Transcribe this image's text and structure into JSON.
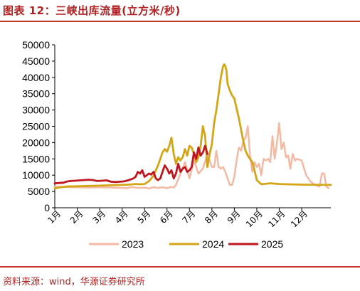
{
  "figure": {
    "title": "图表 12：三峡出库流量(立方米/秒)",
    "source": "资料来源：wind，华源证券研究所"
  },
  "chart_data": {
    "type": "line",
    "title": "图表 12：三峡出库流量(立方米/秒)",
    "xlabel": "",
    "ylabel": "",
    "ylim": [
      0,
      50000
    ],
    "yticks": [
      "0",
      "5000",
      "10000",
      "15000",
      "20000",
      "25000",
      "30000",
      "35000",
      "40000",
      "45000",
      "50000"
    ],
    "xticks": [
      "1月",
      "2月",
      "3月",
      "4月",
      "5月",
      "6月",
      "7月",
      "8月",
      "9月",
      "10月",
      "11月",
      "12月"
    ],
    "xlim": [
      0,
      12.3
    ],
    "grid": false,
    "legend_position": "bottom",
    "series": [
      {
        "name": "2023",
        "color": "#f4b9a3",
        "width": 2.5,
        "x": [
          0,
          0.5,
          1,
          1.5,
          2,
          2.5,
          3,
          3.2,
          3.4,
          3.6,
          3.8,
          4,
          4.2,
          4.4,
          4.5,
          4.6,
          4.8,
          5,
          5.2,
          5.3,
          5.4,
          5.6,
          5.8,
          6,
          6.2,
          6.4,
          6.6,
          6.8,
          7,
          7.1,
          7.2,
          7.3,
          7.4,
          7.5,
          7.6,
          7.7,
          7.8,
          7.9,
          8,
          8.1,
          8.2,
          8.3,
          8.4,
          8.5,
          8.6,
          8.7,
          8.8,
          8.9,
          9,
          9.1,
          9.2,
          9.3,
          9.4,
          9.5,
          9.6,
          9.7,
          9.8,
          9.9,
          10,
          10.1,
          10.2,
          10.3,
          10.4,
          10.5,
          10.6,
          10.7,
          10.8,
          11,
          11.2,
          11.4,
          11.6,
          11.8,
          11.9,
          12,
          12.1,
          12.2
        ],
        "y": [
          6500,
          6400,
          6300,
          6200,
          6300,
          6200,
          6100,
          6000,
          6300,
          6200,
          6100,
          6200,
          5900,
          6300,
          6200,
          6100,
          6300,
          6000,
          6400,
          6200,
          7000,
          10500,
          14000,
          9000,
          14500,
          10500,
          12000,
          16500,
          12500,
          12500,
          17500,
          12500,
          12000,
          12500,
          11000,
          9000,
          7000,
          7000,
          9500,
          14500,
          18500,
          17500,
          20500,
          21500,
          25000,
          16000,
          11000,
          14000,
          12500,
          13500,
          10000,
          15000,
          14500,
          15000,
          14000,
          22000,
          15000,
          20000,
          26000,
          18000,
          20000,
          15500,
          16000,
          12000,
          16500,
          14500,
          15000,
          14500,
          10000,
          8000,
          7000,
          6500,
          10500,
          10500,
          6500,
          6000
        ]
      },
      {
        "name": "2024",
        "color": "#d4a617",
        "width": 2.8,
        "x": [
          0,
          0.5,
          1,
          1.5,
          2,
          2.5,
          3,
          3.3,
          3.6,
          3.8,
          4,
          4.2,
          4.4,
          4.5,
          4.6,
          4.7,
          4.8,
          4.9,
          5,
          5.1,
          5.2,
          5.3,
          5.4,
          5.5,
          5.6,
          5.7,
          5.8,
          5.9,
          6,
          6.1,
          6.2,
          6.3,
          6.4,
          6.5,
          6.6,
          6.7,
          6.8,
          6.9,
          7,
          7.1,
          7.2,
          7.3,
          7.4,
          7.5,
          7.55,
          7.6,
          7.65,
          7.7,
          7.8,
          7.9,
          8,
          8.1,
          8.2,
          8.3,
          8.4,
          8.5,
          8.6,
          8.7,
          8.8,
          8.9,
          9,
          9.2,
          9.6,
          10,
          11,
          12,
          12.3
        ],
        "y": [
          6000,
          6500,
          6600,
          6700,
          6800,
          6900,
          7000,
          7100,
          7300,
          7200,
          7300,
          8200,
          9800,
          11500,
          13000,
          15000,
          17000,
          18000,
          17200,
          19000,
          21500,
          16500,
          13500,
          15500,
          14500,
          15500,
          18000,
          16000,
          19000,
          18500,
          16500,
          14000,
          15500,
          19000,
          25000,
          22000,
          12500,
          16500,
          19500,
          26000,
          30000,
          35000,
          40000,
          43500,
          44000,
          43500,
          42000,
          38000,
          36000,
          34500,
          33500,
          30500,
          27500,
          24000,
          20500,
          17500,
          16000,
          15000,
          14000,
          11500,
          8500,
          7200,
          7500,
          7300,
          7100,
          7000,
          7000
        ]
      },
      {
        "name": "2025",
        "color": "#c0161f",
        "width": 2.8,
        "x": [
          0,
          0.2,
          0.4,
          0.5,
          0.7,
          0.9,
          1.1,
          1.3,
          1.5,
          1.7,
          1.9,
          2.1,
          2.3,
          2.5,
          2.7,
          2.9,
          3.1,
          3.3,
          3.5,
          3.6,
          3.7,
          3.8,
          3.9,
          4,
          4.1,
          4.2,
          4.3,
          4.4,
          4.5,
          4.6,
          4.7,
          4.8,
          4.9,
          5,
          5.1,
          5.2,
          5.3,
          5.4,
          5.5,
          5.6,
          5.7,
          5.8,
          5.9,
          6,
          6.1,
          6.2,
          6.3,
          6.4,
          6.5,
          6.6,
          6.7,
          6.8
        ],
        "y": [
          7500,
          7600,
          7700,
          8000,
          8200,
          8300,
          8400,
          8500,
          8600,
          8500,
          8200,
          8300,
          8400,
          8000,
          7900,
          8000,
          8100,
          8500,
          9000,
          9500,
          11000,
          10500,
          11500,
          9500,
          10000,
          10500,
          10200,
          11000,
          9000,
          8500,
          9000,
          11000,
          13000,
          12000,
          10500,
          11500,
          9000,
          10500,
          13500,
          11000,
          12000,
          12500,
          11000,
          11500,
          12500,
          17000,
          15000,
          18500,
          16000,
          17000,
          19000,
          16500
        ]
      }
    ]
  }
}
